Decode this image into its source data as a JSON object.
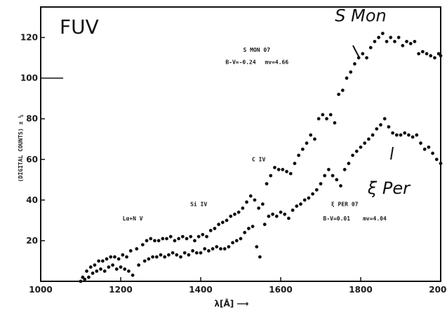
{
  "chart_data": {
    "type": "scatter",
    "title": "FUV",
    "xlabel": "λ[Å] ⟶",
    "ylabel": "(DIGITAL COUNTS) ± ¼",
    "xlim": [
      1000,
      2000
    ],
    "ylim": [
      0,
      135
    ],
    "x_ticks": [
      1000,
      1200,
      1400,
      1600,
      1800,
      2000
    ],
    "y_ticks": [
      20,
      40,
      60,
      80,
      100,
      120
    ],
    "grid": false,
    "series": [
      {
        "name": "S Mon",
        "color": "#111111",
        "x": [
          1105,
          1115,
          1125,
          1135,
          1145,
          1155,
          1165,
          1175,
          1185,
          1195,
          1205,
          1215,
          1225,
          1240,
          1255,
          1265,
          1275,
          1285,
          1295,
          1305,
          1315,
          1325,
          1335,
          1345,
          1355,
          1365,
          1375,
          1385,
          1395,
          1405,
          1415,
          1425,
          1435,
          1445,
          1455,
          1465,
          1475,
          1485,
          1495,
          1505,
          1515,
          1525,
          1535,
          1545,
          1555,
          1565,
          1575,
          1585,
          1595,
          1605,
          1615,
          1625,
          1635,
          1645,
          1655,
          1665,
          1675,
          1685,
          1695,
          1705,
          1715,
          1725,
          1735,
          1745,
          1755,
          1765,
          1775,
          1785,
          1795,
          1805,
          1815,
          1825,
          1835,
          1845,
          1855,
          1865,
          1875,
          1885,
          1895,
          1905,
          1915,
          1925,
          1935,
          1945,
          1955,
          1965,
          1975,
          1985,
          1995,
          2000
        ],
        "y": [
          2,
          5,
          7,
          8,
          10,
          10,
          11,
          12,
          12,
          11,
          13,
          12,
          15,
          16,
          18,
          20,
          21,
          20,
          20,
          21,
          21,
          22,
          20,
          21,
          22,
          21,
          22,
          20,
          22,
          23,
          22,
          25,
          26,
          28,
          29,
          30,
          32,
          33,
          34,
          36,
          39,
          42,
          40,
          36,
          38,
          48,
          52,
          56,
          55,
          55,
          54,
          53,
          58,
          62,
          65,
          68,
          72,
          70,
          80,
          82,
          80,
          82,
          78,
          92,
          94,
          100,
          103,
          107,
          110,
          112,
          110,
          115,
          118,
          120,
          122,
          118,
          120,
          118,
          120,
          116,
          118,
          117,
          118,
          112,
          113,
          112,
          111,
          110,
          112,
          111
        ]
      },
      {
        "name": "ξ Per",
        "color": "#111111",
        "x": [
          1100,
          1110,
          1120,
          1130,
          1140,
          1150,
          1160,
          1170,
          1180,
          1190,
          1200,
          1210,
          1220,
          1230,
          1245,
          1260,
          1270,
          1280,
          1290,
          1300,
          1310,
          1320,
          1330,
          1340,
          1350,
          1360,
          1370,
          1380,
          1390,
          1400,
          1410,
          1420,
          1430,
          1440,
          1450,
          1460,
          1470,
          1480,
          1490,
          1500,
          1510,
          1520,
          1530,
          1540,
          1548,
          1560,
          1570,
          1580,
          1590,
          1600,
          1610,
          1620,
          1630,
          1640,
          1650,
          1660,
          1670,
          1680,
          1690,
          1700,
          1710,
          1720,
          1730,
          1740,
          1750,
          1760,
          1770,
          1780,
          1790,
          1800,
          1810,
          1820,
          1830,
          1840,
          1850,
          1860,
          1870,
          1880,
          1890,
          1900,
          1910,
          1920,
          1930,
          1940,
          1950,
          1960,
          1970,
          1980,
          1990,
          2000
        ],
        "y": [
          0,
          1,
          2,
          4,
          5,
          6,
          5,
          7,
          8,
          6,
          7,
          6,
          5,
          3,
          8,
          10,
          11,
          12,
          12,
          13,
          12,
          13,
          14,
          13,
          12,
          14,
          13,
          15,
          14,
          14,
          16,
          15,
          16,
          17,
          16,
          16,
          17,
          19,
          20,
          21,
          24,
          26,
          27,
          17,
          12,
          28,
          32,
          33,
          32,
          34,
          33,
          31,
          35,
          37,
          38,
          40,
          41,
          43,
          45,
          48,
          52,
          55,
          52,
          50,
          47,
          55,
          58,
          62,
          64,
          66,
          68,
          70,
          72,
          75,
          77,
          80,
          76,
          73,
          72,
          72,
          73,
          72,
          71,
          72,
          68,
          65,
          66,
          63,
          60,
          58
        ]
      }
    ],
    "annotations": [
      {
        "text": "S MON 07",
        "x": 1540,
        "y": 113
      },
      {
        "text": "B-V=-0.24",
        "x": 1500,
        "y": 107
      },
      {
        "text": "mv=4.66",
        "x": 1590,
        "y": 107
      },
      {
        "text": "C IV",
        "x": 1545,
        "y": 59
      },
      {
        "text": "Si IV",
        "x": 1395,
        "y": 37
      },
      {
        "text": "Lα+N V",
        "x": 1230,
        "y": 30
      },
      {
        "text": "ξ PER 07",
        "x": 1760,
        "y": 37
      },
      {
        "text": "B-V=0.01",
        "x": 1740,
        "y": 30
      },
      {
        "text": "mv=4.04",
        "x": 1835,
        "y": 30
      }
    ],
    "handwritten": [
      {
        "text": "S Mon",
        "x": 1800,
        "y": 128
      },
      {
        "text": "ξ Per",
        "x": 1870,
        "y": 43
      }
    ]
  }
}
